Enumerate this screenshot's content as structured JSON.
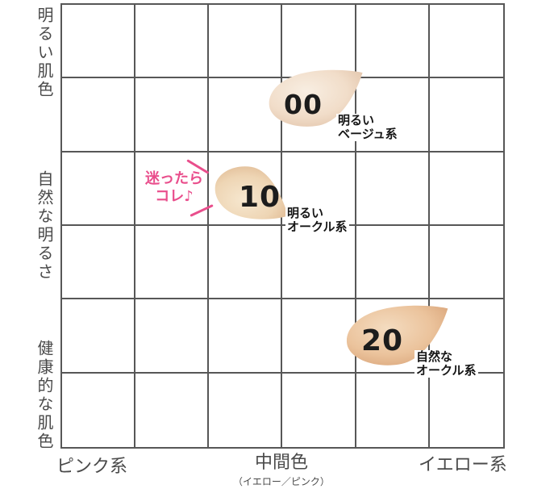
{
  "colors": {
    "grid_line": "#575757",
    "axis_text": "#4a4a4a",
    "label_text": "#151515",
    "number_text": "#1c1c1c",
    "pink": "#e94e8c"
  },
  "grid": {
    "rows": 6,
    "cols": 6
  },
  "y_axis": {
    "top": "明るい肌色",
    "middle": "自然な明るさ",
    "bottom": "健康的な肌色"
  },
  "x_axis": {
    "left": "ピンク系",
    "center": "中間色",
    "center_sub": "（イエロー／ピンク）",
    "right": "イエロー系"
  },
  "swatches": [
    {
      "number": "00",
      "label_line1": "明るい",
      "label_line2": "ベージュ系",
      "colors": {
        "highlight": "#f8eee2",
        "base": "#f1ddc9",
        "shadow": "#dfbfa4"
      }
    },
    {
      "number": "10",
      "label_line1": "明るい",
      "label_line2": "オークル系",
      "colors": {
        "highlight": "#f6e7cf",
        "base": "#eed5b4",
        "shadow": "#dcb28a"
      }
    },
    {
      "number": "20",
      "label_line1": "自然な",
      "label_line2": "オークル系",
      "colors": {
        "highlight": "#f4dcc0",
        "base": "#ebc39c",
        "shadow": "#d69f73"
      }
    }
  ],
  "callout": {
    "line1": "迷ったら",
    "line2": "コレ♪"
  },
  "chart_data": {
    "type": "scatter",
    "title": "",
    "grid": "on",
    "x_axis": {
      "label_left": "ピンク系",
      "label_center": "中間色（イエロー／ピンク）",
      "label_right": "イエロー系",
      "range_grid_cells": [
        0,
        6
      ]
    },
    "y_axis": {
      "label_top": "明るい肌色",
      "label_middle": "自然な明るさ",
      "label_bottom": "健康的な肌色",
      "range_grid_cells": [
        0,
        6
      ]
    },
    "points": [
      {
        "name": "00",
        "label": "明るいベージュ系",
        "grid_x": 3.3,
        "grid_y": 1.4,
        "color": "#f1ddc9"
      },
      {
        "name": "10",
        "label": "明るいオークル系",
        "grid_x": 2.6,
        "grid_y": 2.6,
        "color": "#eed5b4",
        "annotation": "迷ったらコレ♪"
      },
      {
        "name": "20",
        "label": "自然なオークル系",
        "grid_x": 4.5,
        "grid_y": 4.5,
        "color": "#ebc39c"
      }
    ]
  }
}
